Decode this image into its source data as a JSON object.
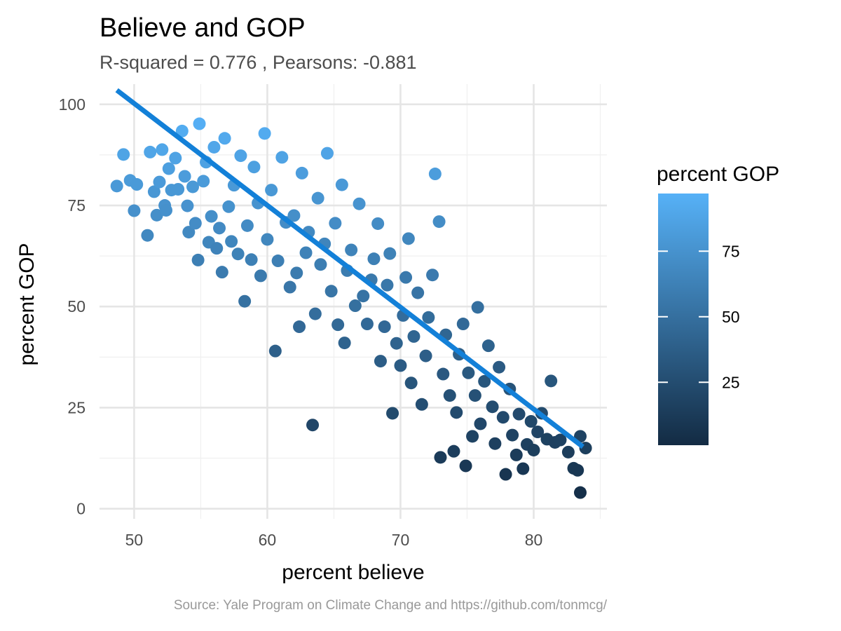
{
  "chart_data": {
    "type": "scatter",
    "title": "Believe and GOP",
    "subtitle": "R-squared =  0.776 , Pearsons: -0.881",
    "xlabel": "percent believe",
    "ylabel": "percent GOP",
    "caption": "Source: Yale Program on Climate Change and https://github.com/tonmcg/",
    "xlim": [
      47.4,
      85.5
    ],
    "ylim": [
      -2.5,
      105
    ],
    "x_ticks": [
      50,
      60,
      70,
      80
    ],
    "y_ticks": [
      0,
      25,
      50,
      75,
      100
    ],
    "x_tick_labels": [
      "50",
      "60",
      "70",
      "80"
    ],
    "y_tick_labels": [
      "0",
      "25",
      "50",
      "75",
      "100"
    ],
    "grid": true,
    "color_scale": {
      "title": "percent GOP",
      "low_color": "#132B43",
      "high_color": "#56B1F7",
      "range": [
        1,
        97
      ],
      "breaks": [
        25,
        50,
        75
      ],
      "break_labels": [
        "25",
        "50",
        "75"
      ],
      "legend_position": "right"
    },
    "trend_line": {
      "color": "#1380D8",
      "x": [
        48.7,
        83.7
      ],
      "y": [
        103.5,
        15.3
      ]
    },
    "point_color_variable": "percent GOP",
    "points": [
      [
        48.7,
        79.8
      ],
      [
        49.2,
        87.6
      ],
      [
        49.7,
        81.2
      ],
      [
        50.0,
        73.7
      ],
      [
        50.2,
        80.2
      ],
      [
        51.0,
        67.6
      ],
      [
        51.2,
        88.2
      ],
      [
        51.5,
        78.4
      ],
      [
        51.7,
        72.6
      ],
      [
        51.9,
        80.8
      ],
      [
        52.1,
        88.8
      ],
      [
        52.3,
        75.0
      ],
      [
        52.4,
        73.8
      ],
      [
        52.6,
        84.1
      ],
      [
        52.8,
        78.8
      ],
      [
        53.1,
        86.7
      ],
      [
        53.3,
        79.0
      ],
      [
        53.6,
        93.4
      ],
      [
        53.8,
        82.2
      ],
      [
        54.0,
        74.9
      ],
      [
        54.1,
        68.4
      ],
      [
        54.4,
        79.6
      ],
      [
        54.6,
        70.6
      ],
      [
        54.8,
        61.5
      ],
      [
        54.9,
        95.2
      ],
      [
        55.2,
        81.0
      ],
      [
        55.4,
        85.7
      ],
      [
        55.6,
        65.9
      ],
      [
        55.8,
        72.3
      ],
      [
        56.0,
        89.4
      ],
      [
        56.2,
        64.4
      ],
      [
        56.4,
        69.4
      ],
      [
        56.6,
        58.5
      ],
      [
        56.8,
        91.6
      ],
      [
        57.1,
        74.7
      ],
      [
        57.3,
        66.1
      ],
      [
        57.5,
        80.0
      ],
      [
        57.8,
        63.0
      ],
      [
        58.0,
        87.3
      ],
      [
        58.3,
        51.3
      ],
      [
        58.5,
        70.0
      ],
      [
        58.8,
        61.6
      ],
      [
        59.0,
        84.5
      ],
      [
        59.3,
        75.6
      ],
      [
        59.5,
        57.6
      ],
      [
        59.8,
        92.8
      ],
      [
        60.0,
        66.6
      ],
      [
        60.3,
        78.8
      ],
      [
        60.6,
        39.0
      ],
      [
        60.8,
        61.3
      ],
      [
        61.1,
        86.9
      ],
      [
        61.4,
        70.8
      ],
      [
        61.7,
        54.8
      ],
      [
        62.0,
        72.5
      ],
      [
        62.2,
        58.3
      ],
      [
        62.4,
        45.0
      ],
      [
        62.6,
        83.0
      ],
      [
        62.9,
        63.3
      ],
      [
        63.1,
        68.4
      ],
      [
        63.4,
        20.7
      ],
      [
        63.6,
        48.2
      ],
      [
        63.8,
        76.8
      ],
      [
        64.0,
        60.4
      ],
      [
        64.3,
        65.5
      ],
      [
        64.5,
        87.9
      ],
      [
        64.8,
        53.8
      ],
      [
        65.1,
        70.6
      ],
      [
        65.3,
        45.5
      ],
      [
        65.6,
        80.1
      ],
      [
        65.8,
        41.0
      ],
      [
        66.0,
        58.9
      ],
      [
        66.3,
        64.0
      ],
      [
        66.6,
        50.2
      ],
      [
        66.9,
        75.4
      ],
      [
        67.2,
        52.6
      ],
      [
        67.5,
        45.7
      ],
      [
        67.8,
        56.6
      ],
      [
        68.0,
        61.8
      ],
      [
        68.3,
        70.5
      ],
      [
        68.5,
        36.5
      ],
      [
        68.8,
        45.0
      ],
      [
        69.0,
        55.3
      ],
      [
        69.2,
        63.1
      ],
      [
        69.4,
        23.6
      ],
      [
        69.7,
        40.9
      ],
      [
        70.0,
        35.4
      ],
      [
        70.2,
        47.8
      ],
      [
        70.4,
        57.2
      ],
      [
        70.6,
        66.8
      ],
      [
        70.8,
        31.1
      ],
      [
        71.0,
        42.6
      ],
      [
        71.3,
        53.4
      ],
      [
        71.6,
        25.8
      ],
      [
        71.9,
        37.8
      ],
      [
        72.1,
        47.3
      ],
      [
        72.4,
        57.8
      ],
      [
        72.6,
        82.8
      ],
      [
        72.9,
        71.0
      ],
      [
        73.0,
        12.7
      ],
      [
        73.2,
        33.3
      ],
      [
        73.4,
        43.0
      ],
      [
        73.7,
        28.0
      ],
      [
        74.0,
        14.2
      ],
      [
        74.2,
        23.8
      ],
      [
        74.4,
        38.2
      ],
      [
        74.7,
        45.7
      ],
      [
        74.9,
        10.6
      ],
      [
        75.1,
        33.6
      ],
      [
        75.4,
        17.9
      ],
      [
        75.6,
        28.0
      ],
      [
        75.8,
        49.8
      ],
      [
        76.0,
        21.0
      ],
      [
        76.3,
        31.5
      ],
      [
        76.6,
        40.3
      ],
      [
        76.9,
        25.2
      ],
      [
        77.1,
        16.1
      ],
      [
        77.4,
        35.0
      ],
      [
        77.7,
        22.6
      ],
      [
        77.9,
        8.5
      ],
      [
        78.2,
        29.6
      ],
      [
        78.4,
        18.2
      ],
      [
        78.7,
        13.3
      ],
      [
        78.9,
        23.4
      ],
      [
        79.2,
        9.9
      ],
      [
        79.5,
        15.9
      ],
      [
        79.8,
        21.6
      ],
      [
        80.0,
        14.5
      ],
      [
        80.3,
        19.0
      ],
      [
        80.6,
        23.6
      ],
      [
        81.0,
        17.2
      ],
      [
        81.3,
        31.6
      ],
      [
        81.6,
        16.4
      ],
      [
        82.0,
        17.0
      ],
      [
        82.6,
        14.0
      ],
      [
        83.0,
        10.0
      ],
      [
        83.3,
        9.5
      ],
      [
        83.5,
        17.9
      ],
      [
        83.5,
        4.0
      ],
      [
        83.9,
        15.0
      ]
    ]
  }
}
